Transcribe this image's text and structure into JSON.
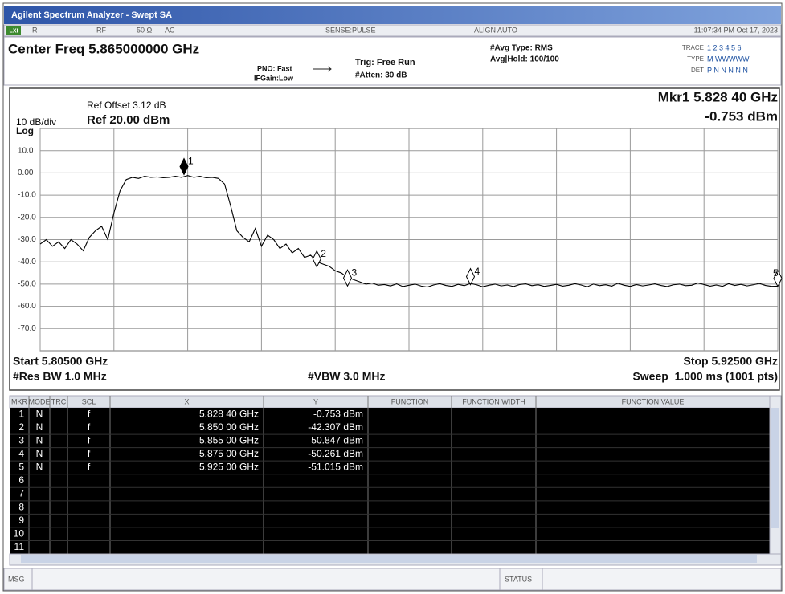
{
  "title_bar": "Agilent Spectrum Analyzer - Swept SA",
  "status_row": {
    "lxi": "LXI",
    "r": "R",
    "rf": "RF",
    "impedance": "50 Ω",
    "coupling": "AC",
    "sense": "SENSE:PULSE",
    "align": "ALIGN AUTO",
    "datetime": "11:07:34 PM Oct 17, 2023"
  },
  "settings": {
    "center_freq": "Center Freq 5.865000000 GHz",
    "pno": "PNO: Fast",
    "ifgain": "IFGain:Low",
    "trig": "Trig: Free Run",
    "atten": "#Atten: 30 dB",
    "avg_type": "#Avg Type: RMS",
    "avg_hold": "Avg|Hold: 100/100",
    "trace_label": "TRACE",
    "trace_nums": "1 2 3 4 5 6",
    "type_label": "TYPE",
    "type_val": "M WWWWW",
    "det_label": "DET",
    "det_val": "P N N N N N"
  },
  "plot_header": {
    "ref_offset": "Ref Offset 3.12 dB",
    "scale": "10 dB/div",
    "ref": "Ref 20.00 dBm",
    "log": "Log",
    "marker_freq": "Mkr1 5.828 40 GHz",
    "marker_amp": "-0.753 dBm"
  },
  "chart_data": {
    "type": "line",
    "color": "#000000",
    "grid": true,
    "xlim": [
      5.805,
      5.925
    ],
    "ylim": [
      -80,
      20
    ],
    "xticks": [
      5.805,
      5.817,
      5.829,
      5.841,
      5.853,
      5.865,
      5.877,
      5.889,
      5.901,
      5.913,
      5.925
    ],
    "yticks": [
      {
        "value": 10,
        "label": "10.0"
      },
      {
        "value": 0,
        "label": "0.00"
      },
      {
        "value": -10,
        "label": "-10.0"
      },
      {
        "value": -20,
        "label": "-20.0"
      },
      {
        "value": -30,
        "label": "-30.0"
      },
      {
        "value": -40,
        "label": "-40.0"
      },
      {
        "value": -50,
        "label": "-50.0"
      },
      {
        "value": -60,
        "label": "-60.0"
      },
      {
        "value": -70,
        "label": "-70.0"
      }
    ],
    "x": [
      5.805,
      5.806,
      5.807,
      5.808,
      5.809,
      5.81,
      5.811,
      5.812,
      5.813,
      5.814,
      5.815,
      5.816,
      5.817,
      5.818,
      5.819,
      5.82,
      5.821,
      5.822,
      5.823,
      5.824,
      5.825,
      5.826,
      5.827,
      5.828,
      5.829,
      5.83,
      5.831,
      5.832,
      5.833,
      5.834,
      5.835,
      5.836,
      5.837,
      5.838,
      5.839,
      5.84,
      5.841,
      5.842,
      5.843,
      5.844,
      5.845,
      5.846,
      5.847,
      5.848,
      5.849,
      5.85,
      5.851,
      5.852,
      5.853,
      5.854,
      5.855,
      5.856,
      5.857,
      5.858,
      5.859,
      5.86,
      5.861,
      5.862,
      5.863,
      5.864,
      5.865,
      5.866,
      5.867,
      5.868,
      5.869,
      5.87,
      5.871,
      5.872,
      5.873,
      5.874,
      5.875,
      5.876,
      5.877,
      5.878,
      5.879,
      5.88,
      5.881,
      5.882,
      5.883,
      5.884,
      5.885,
      5.886,
      5.887,
      5.888,
      5.889,
      5.89,
      5.891,
      5.892,
      5.893,
      5.894,
      5.895,
      5.896,
      5.897,
      5.898,
      5.899,
      5.9,
      5.901,
      5.902,
      5.903,
      5.904,
      5.905,
      5.906,
      5.907,
      5.908,
      5.909,
      5.91,
      5.911,
      5.912,
      5.913,
      5.914,
      5.915,
      5.916,
      5.917,
      5.918,
      5.919,
      5.92,
      5.921,
      5.922,
      5.923,
      5.924,
      5.925
    ],
    "values": [
      -32,
      -30,
      -33,
      -31,
      -34,
      -30,
      -32,
      -35,
      -29,
      -26,
      -24,
      -30,
      -18,
      -8,
      -3,
      -2,
      -2.5,
      -1.5,
      -2,
      -1.8,
      -2.2,
      -2,
      -1.5,
      -2,
      -1.2,
      -2,
      -1.5,
      -2.2,
      -2,
      -2.5,
      -5,
      -15,
      -26,
      -29,
      -31,
      -25,
      -33,
      -28,
      -30,
      -34,
      -32,
      -36,
      -34,
      -38,
      -37,
      -40,
      -41,
      -42,
      -44,
      -45,
      -47,
      -48,
      -49,
      -50,
      -49.5,
      -50.5,
      -50.2,
      -50.8,
      -49.9,
      -51.1,
      -50.5,
      -50.0,
      -50.9,
      -51.3,
      -50.4,
      -49.8,
      -50.6,
      -51.0,
      -50.1,
      -50.7,
      -49.7,
      -50.3,
      -51.2,
      -50.5,
      -50.0,
      -50.8,
      -50.4,
      -51.1,
      -50.2,
      -49.9,
      -50.7,
      -50.3,
      -51.0,
      -50.6,
      -50.1,
      -50.9,
      -50.5,
      -49.8,
      -50.4,
      -51.2,
      -50.0,
      -50.7,
      -50.3,
      -50.9,
      -49.6,
      -50.5,
      -51.0,
      -50.2,
      -50.8,
      -50.4,
      -49.9,
      -50.6,
      -51.1,
      -50.3,
      -50.0,
      -50.7,
      -50.5,
      -49.5,
      -50.2,
      -50.9,
      -50.4,
      -51.0,
      -49.8,
      -50.6,
      -50.1,
      -50.8,
      -50.3,
      -49.7,
      -50.6,
      -51.0,
      -50.9
    ],
    "markers": [
      {
        "label": "1",
        "x": 5.8284,
        "y": -0.753
      },
      {
        "label": "2",
        "x": 5.85,
        "y": -42.307
      },
      {
        "label": "3",
        "x": 5.855,
        "y": -50.847
      },
      {
        "label": "4",
        "x": 5.875,
        "y": -50.261
      },
      {
        "label": "5",
        "x": 5.925,
        "y": -51.015
      }
    ]
  },
  "plot_footer": {
    "start": "Start 5.80500 GHz",
    "stop": "Stop 5.92500 GHz",
    "rbw": "#Res BW 1.0 MHz",
    "vbw": "#VBW 3.0 MHz",
    "sweep": "Sweep  1.000 ms (1001 pts)"
  },
  "marker_table": {
    "columns": [
      "MKR",
      "MODE",
      "TRC",
      "SCL",
      "X",
      "Y",
      "FUNCTION",
      "FUNCTION WIDTH",
      "FUNCTION VALUE"
    ],
    "rows": [
      {
        "mkr": "1",
        "mode": "N",
        "scl": "f",
        "x": "5.828 40 GHz",
        "y": "-0.753 dBm"
      },
      {
        "mkr": "2",
        "mode": "N",
        "scl": "f",
        "x": "5.850 00 GHz",
        "y": "-42.307 dBm"
      },
      {
        "mkr": "3",
        "mode": "N",
        "scl": "f",
        "x": "5.855 00 GHz",
        "y": "-50.847 dBm"
      },
      {
        "mkr": "4",
        "mode": "N",
        "scl": "f",
        "x": "5.875 00 GHz",
        "y": "-50.261 dBm"
      },
      {
        "mkr": "5",
        "mode": "N",
        "scl": "f",
        "x": "5.925 00 GHz",
        "y": "-51.015 dBm"
      },
      {
        "mkr": "6"
      },
      {
        "mkr": "7"
      },
      {
        "mkr": "8"
      },
      {
        "mkr": "9"
      },
      {
        "mkr": "10"
      },
      {
        "mkr": "11"
      }
    ]
  },
  "msg_bar": {
    "msg": "MSG",
    "status": "STATUS"
  }
}
